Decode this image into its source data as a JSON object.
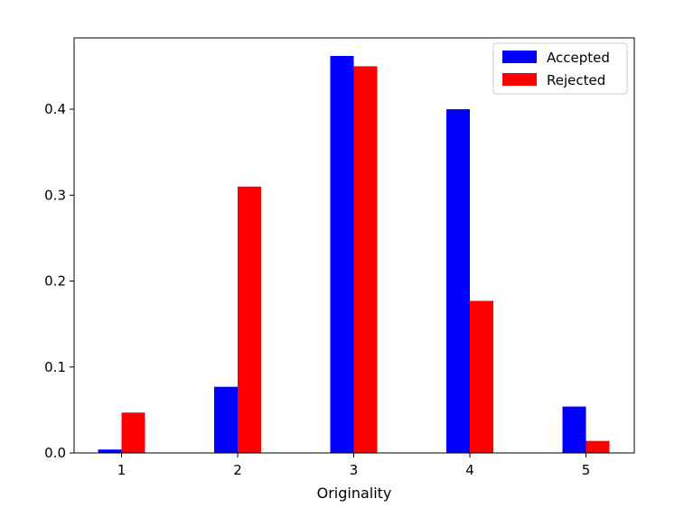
{
  "chart_data": {
    "type": "bar",
    "xlabel": "Originality",
    "ylabel": "",
    "categories": [
      "1",
      "2",
      "3",
      "4",
      "5"
    ],
    "series": [
      {
        "name": "Accepted",
        "color": "#0000ff",
        "values": [
          0.004,
          0.077,
          0.462,
          0.4,
          0.054
        ]
      },
      {
        "name": "Rejected",
        "color": "#ff0000",
        "values": [
          0.047,
          0.31,
          0.45,
          0.177,
          0.014
        ]
      }
    ],
    "ylim": [
      0.0,
      0.483
    ],
    "yticks": [
      {
        "value": 0.0,
        "label": "0.0"
      },
      {
        "value": 0.1,
        "label": "0.1"
      },
      {
        "value": 0.2,
        "label": "0.2"
      },
      {
        "value": 0.3,
        "label": "0.3"
      },
      {
        "value": 0.4,
        "label": "0.4"
      }
    ],
    "grid": false,
    "legend": "top-right"
  }
}
